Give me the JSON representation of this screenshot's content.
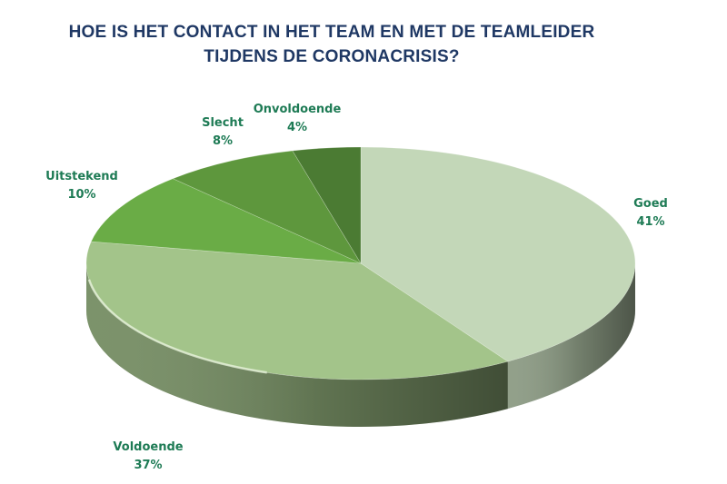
{
  "chart_data": {
    "type": "pie",
    "style": "3d",
    "title_lines": [
      "HOE IS HET CONTACT IN HET TEAM EN MET DE TEAMLEIDER",
      "TIJDENS DE CORONACRISIS?"
    ],
    "categories": [
      "Goed",
      "Voldoende",
      "Uitstekend",
      "Slecht",
      "Onvoldoende"
    ],
    "values": [
      41,
      37,
      10,
      8,
      4
    ],
    "value_labels": [
      "41%",
      "37%",
      "10%",
      "8%",
      "4%"
    ],
    "unit": "%",
    "colors": [
      "#c3d7b8",
      "#a3c48a",
      "#6aac46",
      "#5e973d",
      "#4b7b33"
    ],
    "legend": "none",
    "label_color": "#1e7b55"
  }
}
